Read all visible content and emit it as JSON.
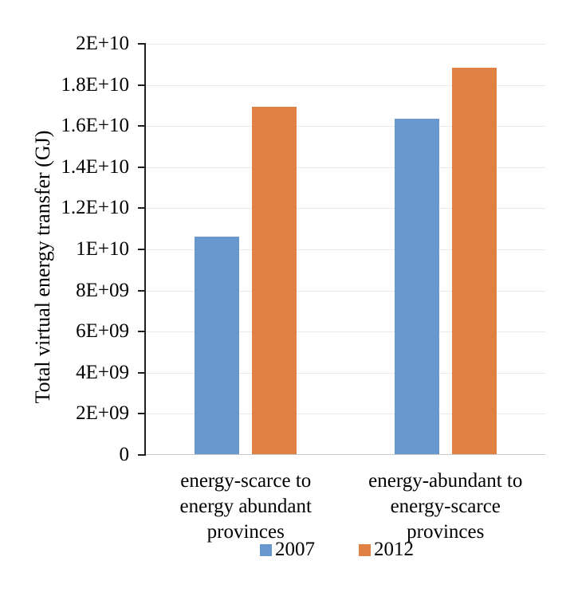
{
  "chart_data": {
    "type": "bar",
    "title": "",
    "xlabel": "",
    "ylabel": "Total virtual energy transfer (GJ)",
    "categories": [
      "energy-scarce to\nenergy abundant\nprovinces",
      "energy-abundant to\nenergy-scarce\nprovinces"
    ],
    "series": [
      {
        "name": "2007",
        "color": "#6998CF",
        "values": [
          10600000000.0,
          16300000000.0
        ]
      },
      {
        "name": "2012",
        "color": "#DE8142",
        "values": [
          16900000000.0,
          18800000000.0
        ]
      }
    ],
    "ylim": [
      0,
      20000000000.0
    ],
    "ytick_step": 2000000000.0,
    "ytick_labels": [
      "0",
      "2E+09",
      "4E+09",
      "6E+09",
      "8E+09",
      "1E+10",
      "1.2E+10",
      "1.4E+10",
      "1.6E+10",
      "1.8E+10",
      "2E+10"
    ],
    "grid": true,
    "gridline_color": "#e9e9e9",
    "axis_color": "#1f1f1f",
    "legend_position": "bottom"
  }
}
